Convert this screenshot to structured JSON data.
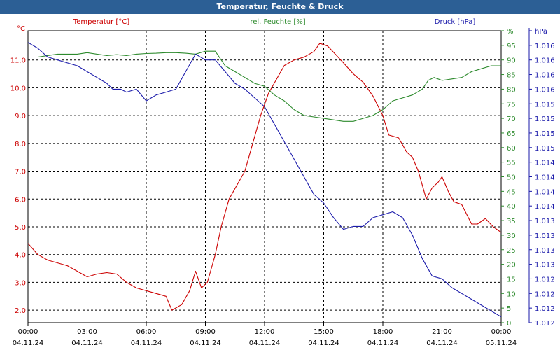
{
  "title": "Temperatur, Feuchte & Druck",
  "chart_data": {
    "type": "line",
    "series_labels": {
      "temperature": "Temperatur [°C]",
      "humidity": "rel. Feuchte [%]",
      "pressure": "Druck [hPa]"
    },
    "axis_units": {
      "left": "°C",
      "right_inner": "%",
      "right_outer": "hPa"
    },
    "x_ticks": [
      {
        "time": "00:00",
        "date": "04.11.24"
      },
      {
        "time": "03:00",
        "date": "04.11.24"
      },
      {
        "time": "06:00",
        "date": "04.11.24"
      },
      {
        "time": "09:00",
        "date": "04.11.24"
      },
      {
        "time": "12:00",
        "date": "04.11.24"
      },
      {
        "time": "15:00",
        "date": "04.11.24"
      },
      {
        "time": "18:00",
        "date": "04.11.24"
      },
      {
        "time": "21:00",
        "date": "04.11.24"
      },
      {
        "time": "00:00",
        "date": "05.11.24"
      }
    ],
    "xlim_hours": [
      0,
      24
    ],
    "temperature_axis": {
      "ylim": [
        1.55,
        12.05
      ],
      "ticks": [
        "2.0",
        "3.0",
        "4.0",
        "5.0",
        "6.0",
        "7.0",
        "8.0",
        "9.0",
        "10.0",
        "11.0"
      ],
      "tick_values": [
        2,
        3,
        4,
        5,
        6,
        7,
        8,
        9,
        10,
        11
      ]
    },
    "humidity_axis": {
      "ylim": [
        0,
        100
      ],
      "ticks": [
        "0",
        "5",
        "10",
        "15",
        "20",
        "25",
        "30",
        "35",
        "40",
        "45",
        "50",
        "55",
        "60",
        "65",
        "70",
        "75",
        "80",
        "85",
        "90",
        "95",
        "%"
      ]
    },
    "pressure_axis": {
      "ylim": [
        1011.5,
        1016.5
      ],
      "ticks": [
        "1.012",
        "1.012",
        "1.012",
        "1.012",
        "1.013",
        "1.013",
        "1.013",
        "1.013",
        "1.014",
        "1.014",
        "1.014",
        "1.014",
        "1.015",
        "1.015",
        "1.015",
        "1.015",
        "1.016",
        "1.016",
        "1.016",
        "1.016",
        "hPa"
      ]
    },
    "grid": true,
    "series": [
      {
        "name": "Temperatur [°C]",
        "axis": "temperature",
        "color": "#cc0000",
        "points": [
          [
            0,
            4.4
          ],
          [
            0.5,
            4.0
          ],
          [
            1,
            3.8
          ],
          [
            1.5,
            3.7
          ],
          [
            2,
            3.6
          ],
          [
            2.5,
            3.4
          ],
          [
            3,
            3.2
          ],
          [
            3.5,
            3.3
          ],
          [
            4,
            3.35
          ],
          [
            4.5,
            3.3
          ],
          [
            5,
            3.0
          ],
          [
            5.5,
            2.8
          ],
          [
            6,
            2.7
          ],
          [
            6.5,
            2.6
          ],
          [
            7,
            2.5
          ],
          [
            7.3,
            2.0
          ],
          [
            7.8,
            2.2
          ],
          [
            8.2,
            2.7
          ],
          [
            8.5,
            3.4
          ],
          [
            8.8,
            2.8
          ],
          [
            9.1,
            3.0
          ],
          [
            9.5,
            4.0
          ],
          [
            9.8,
            5.0
          ],
          [
            10.2,
            6.0
          ],
          [
            10.6,
            6.5
          ],
          [
            11,
            7.0
          ],
          [
            11.4,
            8.0
          ],
          [
            11.8,
            9.0
          ],
          [
            12.2,
            9.8
          ],
          [
            12.6,
            10.3
          ],
          [
            13,
            10.8
          ],
          [
            13.5,
            11.0
          ],
          [
            14,
            11.1
          ],
          [
            14.5,
            11.3
          ],
          [
            14.8,
            11.6
          ],
          [
            15.2,
            11.5
          ],
          [
            15.6,
            11.2
          ],
          [
            16,
            10.9
          ],
          [
            16.5,
            10.5
          ],
          [
            17,
            10.2
          ],
          [
            17.5,
            9.7
          ],
          [
            18,
            9.0
          ],
          [
            18.3,
            8.3
          ],
          [
            18.8,
            8.2
          ],
          [
            19.2,
            7.7
          ],
          [
            19.5,
            7.5
          ],
          [
            19.8,
            7.0
          ],
          [
            20.2,
            6.0
          ],
          [
            20.5,
            6.4
          ],
          [
            20.8,
            6.6
          ],
          [
            21,
            6.8
          ],
          [
            21.3,
            6.3
          ],
          [
            21.6,
            5.9
          ],
          [
            22,
            5.8
          ],
          [
            22.5,
            5.1
          ],
          [
            22.8,
            5.1
          ],
          [
            23.2,
            5.3
          ],
          [
            23.6,
            5.0
          ],
          [
            24,
            4.8
          ]
        ]
      },
      {
        "name": "rel. Feuchte [%]",
        "axis": "humidity",
        "color": "#2e8b2e",
        "points": [
          [
            0,
            91
          ],
          [
            0.5,
            91
          ],
          [
            1,
            91.5
          ],
          [
            1.5,
            92
          ],
          [
            2,
            92
          ],
          [
            2.5,
            92
          ],
          [
            3,
            92.5
          ],
          [
            3.5,
            92
          ],
          [
            4,
            91.5
          ],
          [
            4.5,
            91.8
          ],
          [
            5,
            91.5
          ],
          [
            5.5,
            92
          ],
          [
            6,
            92.2
          ],
          [
            6.5,
            92.3
          ],
          [
            7,
            92.5
          ],
          [
            7.5,
            92.5
          ],
          [
            8,
            92.3
          ],
          [
            8.5,
            92
          ],
          [
            9,
            93
          ],
          [
            9.5,
            93
          ],
          [
            10,
            88
          ],
          [
            10.5,
            86
          ],
          [
            11,
            84
          ],
          [
            11.5,
            82
          ],
          [
            12,
            81
          ],
          [
            12.5,
            78
          ],
          [
            13,
            76
          ],
          [
            13.5,
            73
          ],
          [
            14,
            71
          ],
          [
            14.5,
            70.5
          ],
          [
            15,
            70
          ],
          [
            15.5,
            69.5
          ],
          [
            16,
            69
          ],
          [
            16.5,
            69
          ],
          [
            17,
            70
          ],
          [
            17.5,
            71
          ],
          [
            18,
            73
          ],
          [
            18.5,
            76
          ],
          [
            19,
            77
          ],
          [
            19.5,
            78
          ],
          [
            20,
            80
          ],
          [
            20.3,
            83
          ],
          [
            20.6,
            84
          ],
          [
            21,
            83
          ],
          [
            21.5,
            83.5
          ],
          [
            22,
            84
          ],
          [
            22.5,
            86
          ],
          [
            23,
            87
          ],
          [
            23.5,
            88
          ],
          [
            24,
            88
          ]
        ]
      },
      {
        "name": "Druck [hPa]",
        "axis": "pressure",
        "color": "#1a1aaa",
        "points": [
          [
            0,
            1016.3
          ],
          [
            0.5,
            1016.2
          ],
          [
            1,
            1016.05
          ],
          [
            1.5,
            1016.0
          ],
          [
            2,
            1015.95
          ],
          [
            2.5,
            1015.9
          ],
          [
            3,
            1015.8
          ],
          [
            3.5,
            1015.7
          ],
          [
            4,
            1015.6
          ],
          [
            4.3,
            1015.5
          ],
          [
            4.7,
            1015.5
          ],
          [
            5,
            1015.45
          ],
          [
            5.5,
            1015.5
          ],
          [
            6,
            1015.3
          ],
          [
            6.5,
            1015.4
          ],
          [
            7,
            1015.45
          ],
          [
            7.5,
            1015.5
          ],
          [
            8,
            1015.8
          ],
          [
            8.5,
            1016.1
          ],
          [
            9,
            1016.0
          ],
          [
            9.5,
            1016.0
          ],
          [
            10,
            1015.8
          ],
          [
            10.5,
            1015.6
          ],
          [
            11,
            1015.5
          ],
          [
            11.5,
            1015.35
          ],
          [
            12,
            1015.2
          ],
          [
            12.5,
            1014.9
          ],
          [
            13,
            1014.6
          ],
          [
            13.5,
            1014.3
          ],
          [
            14,
            1014.0
          ],
          [
            14.5,
            1013.7
          ],
          [
            15,
            1013.55
          ],
          [
            15.5,
            1013.3
          ],
          [
            16,
            1013.1
          ],
          [
            16.5,
            1013.15
          ],
          [
            17,
            1013.15
          ],
          [
            17.5,
            1013.3
          ],
          [
            18,
            1013.35
          ],
          [
            18.5,
            1013.4
          ],
          [
            19,
            1013.3
          ],
          [
            19.5,
            1013.0
          ],
          [
            20,
            1012.6
          ],
          [
            20.5,
            1012.3
          ],
          [
            21,
            1012.25
          ],
          [
            21.5,
            1012.1
          ],
          [
            22,
            1012.0
          ],
          [
            22.5,
            1011.9
          ],
          [
            23,
            1011.8
          ],
          [
            23.5,
            1011.7
          ],
          [
            24,
            1011.6
          ]
        ]
      }
    ]
  }
}
